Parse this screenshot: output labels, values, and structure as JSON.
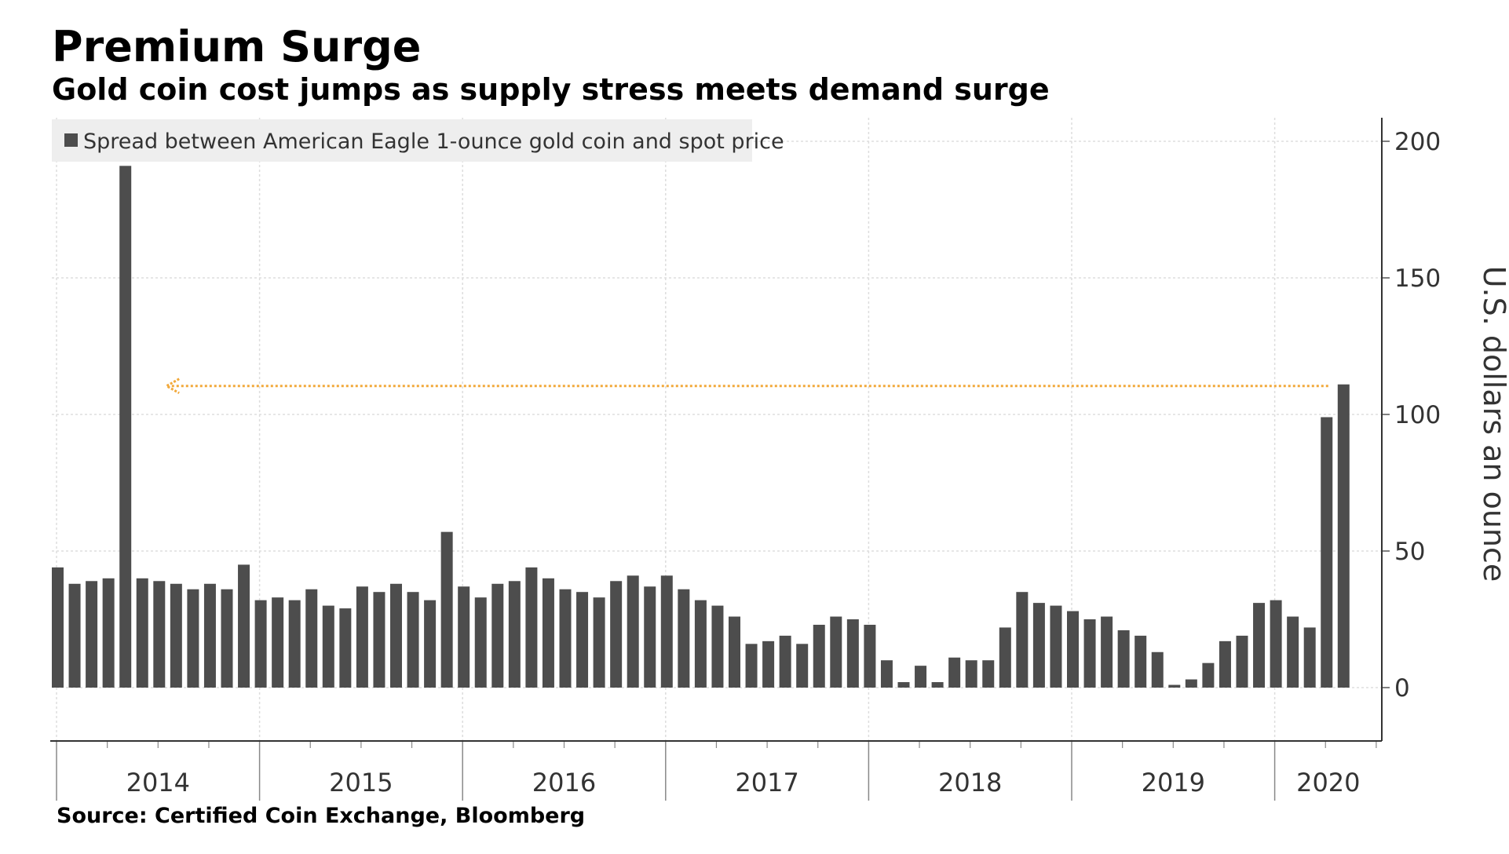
{
  "header": {
    "title": "Premium Surge",
    "subtitle": "Gold coin cost jumps as supply stress meets demand surge"
  },
  "footer": {
    "source": "Source: Certified Coin Exchange, Bloomberg"
  },
  "colors": {
    "bar": "#4d4d4d",
    "arrow": "#f2a93b",
    "grid": "#dddddd",
    "legend_bg": "#eeeeee"
  },
  "chart_data": {
    "type": "bar",
    "title": "Premium Surge",
    "subtitle": "Gold coin cost jumps as supply stress meets demand surge",
    "ylabel": "U.S. dollars an ounce",
    "y_axis_side": "right",
    "ylim": [
      -20,
      205
    ],
    "yticks": [
      0,
      50,
      100,
      150,
      200
    ],
    "grid": true,
    "legend_position": "top-left",
    "x_start": "2014-01",
    "x_frequency": "monthly",
    "x_tick_labels": [
      "2014",
      "2015",
      "2016",
      "2017",
      "2018",
      "2019",
      "2020"
    ],
    "series": [
      {
        "name": "Spread between American Eagle 1-ounce gold coin and spot price",
        "values": [
          44,
          38,
          39,
          40,
          191,
          40,
          39,
          38,
          36,
          38,
          36,
          45,
          32,
          33,
          32,
          36,
          30,
          29,
          37,
          35,
          38,
          35,
          32,
          57,
          37,
          33,
          38,
          39,
          44,
          40,
          36,
          35,
          33,
          39,
          41,
          37,
          41,
          36,
          32,
          30,
          26,
          16,
          17,
          19,
          16,
          23,
          26,
          25,
          23,
          10,
          2,
          8,
          2,
          11,
          10,
          10,
          22,
          35,
          31,
          30,
          28,
          25,
          26,
          21,
          19,
          13,
          1,
          3,
          9,
          17,
          19,
          31,
          32,
          26,
          22,
          99,
          111
        ]
      }
    ],
    "annotations": [
      {
        "type": "arrow",
        "from_value": 111,
        "direction": "left",
        "to": "2014-05"
      }
    ]
  }
}
